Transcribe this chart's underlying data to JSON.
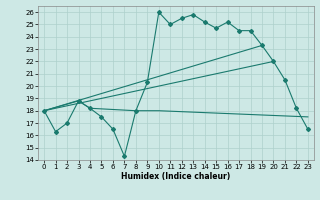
{
  "xlabel": "Humidex (Indice chaleur)",
  "xlim": [
    -0.5,
    23.5
  ],
  "ylim": [
    14,
    26.5
  ],
  "yticks": [
    14,
    15,
    16,
    17,
    18,
    19,
    20,
    21,
    22,
    23,
    24,
    25,
    26
  ],
  "xticks": [
    0,
    1,
    2,
    3,
    4,
    5,
    6,
    7,
    8,
    9,
    10,
    11,
    12,
    13,
    14,
    15,
    16,
    17,
    18,
    19,
    20,
    21,
    22,
    23
  ],
  "bg_color": "#cde8e5",
  "grid_color": "#aed0cc",
  "line_color": "#1a7a6e",
  "line1_x": [
    0,
    1,
    2,
    3,
    4,
    5,
    6,
    7,
    8,
    9,
    10,
    11,
    12,
    13,
    14,
    15,
    16,
    17,
    18,
    19,
    20,
    21,
    22,
    23
  ],
  "line1_y": [
    18.0,
    16.3,
    17.0,
    18.8,
    18.2,
    17.5,
    16.5,
    14.3,
    18.0,
    20.3,
    26.0,
    25.0,
    25.5,
    25.8,
    25.2,
    24.7,
    25.2,
    24.5,
    24.5,
    23.3,
    22.0,
    20.5,
    18.2,
    16.5
  ],
  "line2_x": [
    0,
    3,
    4,
    8,
    10,
    23
  ],
  "line2_y": [
    18.0,
    18.8,
    18.2,
    18.0,
    18.0,
    17.5
  ],
  "line3_x": [
    0,
    19
  ],
  "line3_y": [
    18.0,
    23.3
  ],
  "line4_x": [
    0,
    20
  ],
  "line4_y": [
    18.0,
    22.0
  ],
  "label_fontsize": 5.5,
  "tick_fontsize": 5
}
